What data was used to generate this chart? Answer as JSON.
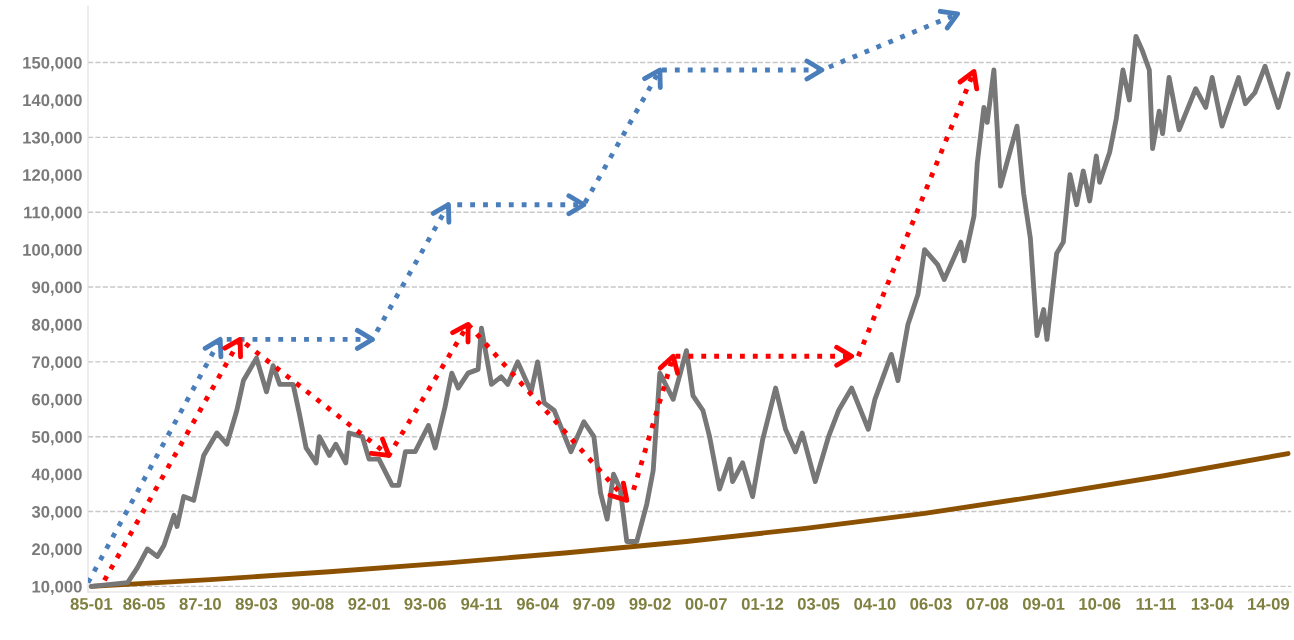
{
  "chart_data": {
    "type": "line",
    "xlim": [
      "1984-12",
      "2015-04"
    ],
    "ylim": [
      8500,
      165000
    ],
    "xticks": [
      {
        "value": "1985-01",
        "label": "85-01"
      },
      {
        "value": "1986-05",
        "label": "86-05"
      },
      {
        "value": "1987-10",
        "label": "87-10"
      },
      {
        "value": "1989-03",
        "label": "89-03"
      },
      {
        "value": "1990-08",
        "label": "90-08"
      },
      {
        "value": "1992-01",
        "label": "92-01"
      },
      {
        "value": "1993-06",
        "label": "93-06"
      },
      {
        "value": "1994-11",
        "label": "94-11"
      },
      {
        "value": "1996-04",
        "label": "96-04"
      },
      {
        "value": "1997-09",
        "label": "97-09"
      },
      {
        "value": "1999-02",
        "label": "99-02"
      },
      {
        "value": "2000-07",
        "label": "00-07"
      },
      {
        "value": "2001-12",
        "label": "01-12"
      },
      {
        "value": "2003-05",
        "label": "03-05"
      },
      {
        "value": "2004-10",
        "label": "04-10"
      },
      {
        "value": "2006-03",
        "label": "06-03"
      },
      {
        "value": "2007-08",
        "label": "07-08"
      },
      {
        "value": "2009-01",
        "label": "09-01"
      },
      {
        "value": "2010-06",
        "label": "10-06"
      },
      {
        "value": "2011-11",
        "label": "11-11"
      },
      {
        "value": "2013-04",
        "label": "13-04"
      },
      {
        "value": "2014-09",
        "label": "14-09"
      }
    ],
    "yticks": [
      {
        "value": 10000,
        "label": "10,000"
      },
      {
        "value": 20000,
        "label": "20,000"
      },
      {
        "value": 30000,
        "label": "30,000"
      },
      {
        "value": 40000,
        "label": "40,000"
      },
      {
        "value": 50000,
        "label": "50,000"
      },
      {
        "value": 60000,
        "label": "60,000"
      },
      {
        "value": 70000,
        "label": "70,000"
      },
      {
        "value": 80000,
        "label": "80,000"
      },
      {
        "value": 90000,
        "label": "90,000"
      },
      {
        "value": 100000,
        "label": "100,000"
      },
      {
        "value": 110000,
        "label": "110,000"
      },
      {
        "value": 120000,
        "label": "120,000"
      },
      {
        "value": 130000,
        "label": "130,000"
      },
      {
        "value": 140000,
        "label": "140,000"
      },
      {
        "value": 150000,
        "label": "150,000"
      }
    ],
    "ref_lines": [
      {
        "axis": "y",
        "value": 10000,
        "color": "#c8c8c8",
        "line_style": "dashed"
      },
      {
        "axis": "y",
        "value": 30000,
        "color": "#c8c8c8",
        "line_style": "dashed"
      },
      {
        "axis": "y",
        "value": 50000,
        "color": "#c8c8c8",
        "line_style": "dashed"
      },
      {
        "axis": "y",
        "value": 70000,
        "color": "#c8c8c8",
        "line_style": "dashed"
      },
      {
        "axis": "y",
        "value": 90000,
        "color": "#c8c8c8",
        "line_style": "dashed"
      },
      {
        "axis": "y",
        "value": 110000,
        "color": "#c8c8c8",
        "line_style": "dashed"
      },
      {
        "axis": "y",
        "value": 130000,
        "color": "#c8c8c8",
        "line_style": "dashed"
      },
      {
        "axis": "y",
        "value": 150000,
        "color": "#c8c8c8",
        "line_style": "dashed"
      }
    ],
    "series": [
      {
        "color": "#8b5000",
        "line_style": "solid",
        "x": [
          "1985-01",
          "1988-01",
          "1991-01",
          "1994-01",
          "1997-01",
          "2000-01",
          "2003-01",
          "2006-01",
          "2009-01",
          "2012-01",
          "2015-03"
        ],
        "values": [
          10000,
          11800,
          13900,
          16300,
          19000,
          22000,
          25500,
          29500,
          34300,
          39500,
          45500
        ]
      },
      {
        "color": "#777777",
        "line_style": "solid",
        "x": [
          "1985-01",
          "1985-12",
          "1986-03",
          "1986-06",
          "1986-09",
          "1986-11",
          "1987-02",
          "1987-03",
          "1987-05",
          "1987-08",
          "1987-11",
          "1988-03",
          "1988-06",
          "1988-09",
          "1988-11",
          "1989-03",
          "1989-06",
          "1989-08",
          "1989-10",
          "1990-02",
          "1990-04",
          "1990-06",
          "1990-09",
          "1990-10",
          "1991-01",
          "1991-03",
          "1991-06",
          "1991-07",
          "1991-11",
          "1992-01",
          "1992-04",
          "1992-08",
          "1992-10",
          "1992-12",
          "1993-03",
          "1993-07",
          "1993-09",
          "1993-12",
          "1994-02",
          "1994-04",
          "1994-07",
          "1994-10",
          "1994-11",
          "1995-02",
          "1995-05",
          "1995-07",
          "1995-10",
          "1996-02",
          "1996-04",
          "1996-06",
          "1996-09",
          "1997-02",
          "1997-06",
          "1997-09",
          "1997-11",
          "1998-01",
          "1998-03",
          "1998-05",
          "1998-07",
          "1998-10",
          "1999-01",
          "1999-03",
          "1999-05",
          "1999-09",
          "2000-01",
          "2000-03",
          "2000-06",
          "2000-08",
          "2000-11",
          "2001-02",
          "2001-03",
          "2001-06",
          "2001-09",
          "2001-12",
          "2002-04",
          "2002-07",
          "2002-10",
          "2002-12",
          "2003-04",
          "2003-08",
          "2003-11",
          "2004-03",
          "2004-08",
          "2004-10",
          "2005-03",
          "2005-05",
          "2005-08",
          "2005-11",
          "2006-01",
          "2006-05",
          "2006-07",
          "2006-12",
          "2007-01",
          "2007-04",
          "2007-05",
          "2007-07",
          "2007-08",
          "2007-10",
          "2007-12",
          "2008-05",
          "2008-07",
          "2008-09",
          "2008-11",
          "2009-01",
          "2009-02",
          "2009-05",
          "2009-07",
          "2009-09",
          "2009-11",
          "2010-01",
          "2010-03",
          "2010-05",
          "2010-06",
          "2010-09",
          "2010-11",
          "2011-01",
          "2011-03",
          "2011-05",
          "2011-07",
          "2011-09",
          "2011-10",
          "2011-12",
          "2012-01",
          "2012-03",
          "2012-06",
          "2012-11",
          "2013-02",
          "2013-04",
          "2013-07",
          "2013-12",
          "2014-02",
          "2014-05",
          "2014-08",
          "2014-12",
          "2015-03"
        ],
        "values": [
          10000,
          11000,
          15000,
          20000,
          18000,
          21000,
          29000,
          26000,
          34000,
          33000,
          45000,
          51000,
          48000,
          57000,
          65000,
          71000,
          62000,
          69000,
          64000,
          64000,
          56000,
          47000,
          43000,
          50000,
          45000,
          48000,
          43000,
          51000,
          50000,
          44000,
          44000,
          37000,
          37000,
          46000,
          46000,
          53000,
          47000,
          58000,
          67000,
          63000,
          67000,
          68000,
          79000,
          64000,
          66000,
          64000,
          70000,
          62000,
          70000,
          59000,
          57000,
          46000,
          54000,
          50000,
          35000,
          28000,
          40000,
          36000,
          22000,
          22000,
          32000,
          41000,
          67000,
          60000,
          73000,
          61000,
          57000,
          50000,
          36000,
          44000,
          38000,
          43000,
          34000,
          49000,
          63000,
          52000,
          46000,
          51000,
          38000,
          50000,
          57000,
          63000,
          52000,
          60000,
          72000,
          65000,
          80000,
          88000,
          100000,
          96000,
          92000,
          102000,
          97000,
          109000,
          123000,
          138000,
          134000,
          148000,
          117000,
          133000,
          115000,
          103000,
          77000,
          84000,
          76000,
          99000,
          102000,
          120000,
          112000,
          121000,
          113000,
          125000,
          118000,
          126000,
          135000,
          148000,
          140000,
          157000,
          153000,
          148000,
          127000,
          137000,
          131000,
          146000,
          132000,
          143000,
          138000,
          146000,
          133000,
          146000,
          139000,
          142000,
          149000,
          138000,
          147000
        ]
      },
      {
        "color": "#4a7ebb",
        "line_style": "dotted",
        "x": [
          "1984-12",
          "1988-04",
          "1992-02",
          "1994-01",
          "1997-06",
          "1999-05",
          "2003-06",
          "2006-11"
        ],
        "values": [
          11000,
          76000,
          76000,
          112000,
          112000,
          148000,
          148000,
          163000
        ]
      },
      {
        "color": "#ff0000",
        "line_style": "dotted",
        "x": [
          "1985-05",
          "1988-10",
          "1992-07",
          "1994-07",
          "1998-07"
        ],
        "values": [
          11600,
          76000,
          45000,
          80000,
          33000
        ]
      },
      {
        "color": "#ff0000",
        "line_style": "dotted",
        "x": [
          "1998-09",
          "1999-09",
          "2004-03"
        ],
        "values": [
          35800,
          71500,
          71500
        ]
      },
      {
        "color": "#ff0000",
        "line_style": "dotted",
        "x": [
          "2004-05",
          "2007-04"
        ],
        "values": [
          71500,
          147600
        ]
      }
    ]
  }
}
